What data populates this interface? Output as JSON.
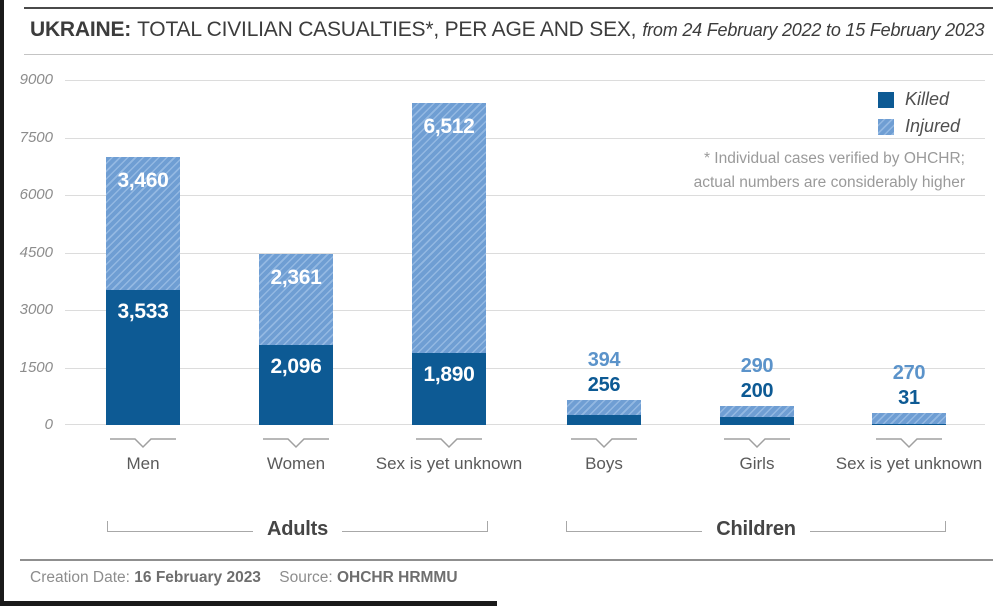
{
  "header": {
    "title_country": "UKRAINE:",
    "title_main": "TOTAL CIVILIAN CASUALTIES*, PER AGE AND SEX,",
    "title_period": "from 24 February 2022 to 15 February 2023"
  },
  "legend": {
    "killed_label": "Killed",
    "injured_label": "Injured"
  },
  "note": {
    "line1": "* Individual cases verified by OHCHR;",
    "line2": "actual numbers are considerably higher"
  },
  "footer": {
    "creation_label": "Creation Date:",
    "creation_value": "16 February 2023",
    "source_label": "Source:",
    "source_value": "OHCHR HRMMU"
  },
  "colors": {
    "killed": "#0d5a94",
    "injured_base": "#6f9ed3",
    "injured_stripe": "#93b8e2",
    "killed_text": "#0d5a94",
    "injured_text": "#5b93ca"
  },
  "chart_data": {
    "type": "bar",
    "stacked": true,
    "title": "UKRAINE: TOTAL CIVILIAN CASUALTIES*, PER AGE AND SEX, from 24 February 2022 to 15 February 2023",
    "categories": [
      "Men",
      "Women",
      "Sex is yet unknown",
      "Boys",
      "Girls",
      "Sex is yet unknown"
    ],
    "series": [
      {
        "name": "Killed",
        "values": [
          3533,
          2096,
          1890,
          256,
          200,
          31
        ]
      },
      {
        "name": "Injured",
        "values": [
          3460,
          2361,
          6512,
          394,
          290,
          270
        ]
      }
    ],
    "groups": [
      {
        "label": "Adults"
      },
      {
        "label": "Children"
      }
    ],
    "label_position": [
      "inside",
      "inside",
      "inside",
      "above",
      "above",
      "above"
    ],
    "ylim": [
      0,
      9000
    ],
    "yticks": [
      0,
      1500,
      3000,
      4500,
      6000,
      7500,
      9000
    ],
    "grid": true,
    "legend_position": "top-right"
  }
}
